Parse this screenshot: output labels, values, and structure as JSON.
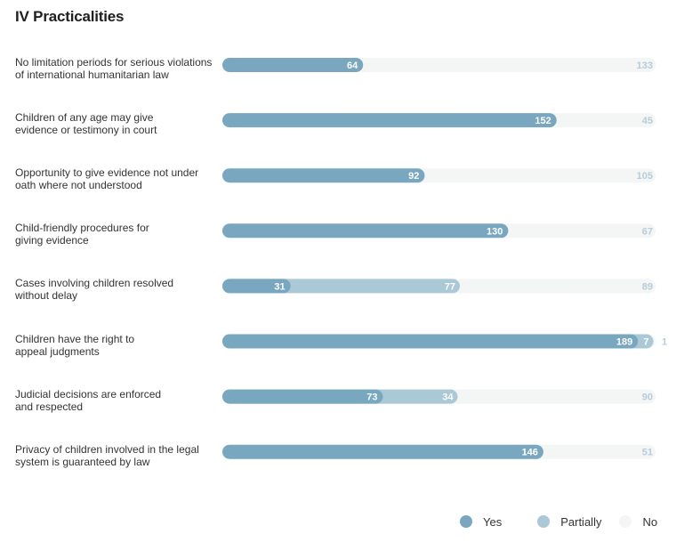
{
  "title": "IV Practicalities",
  "colors": {
    "yes": "#78a7bf",
    "partially": "#aac8d5",
    "no": "#f4f5f5",
    "yes_label": "#ffffff",
    "partially_label": "#ffffff",
    "no_label": "#b6cdd8"
  },
  "legend": {
    "yes": "Yes",
    "partially": "Partially",
    "no": "No"
  },
  "chart_data": {
    "type": "bar",
    "orientation": "horizontal",
    "stacked": true,
    "title": "IV Practicalities",
    "xlabel": "",
    "ylabel": "",
    "total": 197,
    "categories": [
      "No limitation periods for serious violations of international humanitarian law",
      "Children of any age may give evidence or testimony in court",
      "Opportunity to give evidence not under oath where not understood",
      "Child-friendly procedures for giving evidence",
      "Cases involving children resolved without delay",
      "Children have the right to appeal judgments",
      "Judicial decisions are enforced and respected",
      "Privacy of children involved in the legal system is guaranteed by law"
    ],
    "labels": [
      [
        "No limitation periods for serious violations",
        "of international humanitarian law"
      ],
      [
        "Children of any age may give",
        "evidence or testimony in court"
      ],
      [
        "Opportunity to give evidence not under",
        "oath where not understood"
      ],
      [
        "Child-friendly procedures for",
        "giving evidence"
      ],
      [
        "Cases involving children resolved",
        "without delay"
      ],
      [
        "Children have the right to",
        "appeal judgments"
      ],
      [
        "Judicial decisions are enforced",
        "and respected"
      ],
      [
        "Privacy of children involved in the legal",
        "system is guaranteed by law"
      ]
    ],
    "series": [
      {
        "name": "Yes",
        "values": [
          64,
          152,
          92,
          130,
          31,
          189,
          73,
          146
        ]
      },
      {
        "name": "Partially",
        "values": [
          0,
          0,
          0,
          0,
          77,
          7,
          34,
          0
        ]
      },
      {
        "name": "No",
        "values": [
          133,
          45,
          105,
          67,
          89,
          1,
          90,
          51
        ]
      }
    ],
    "legend_position": "bottom-right",
    "grid": false
  }
}
